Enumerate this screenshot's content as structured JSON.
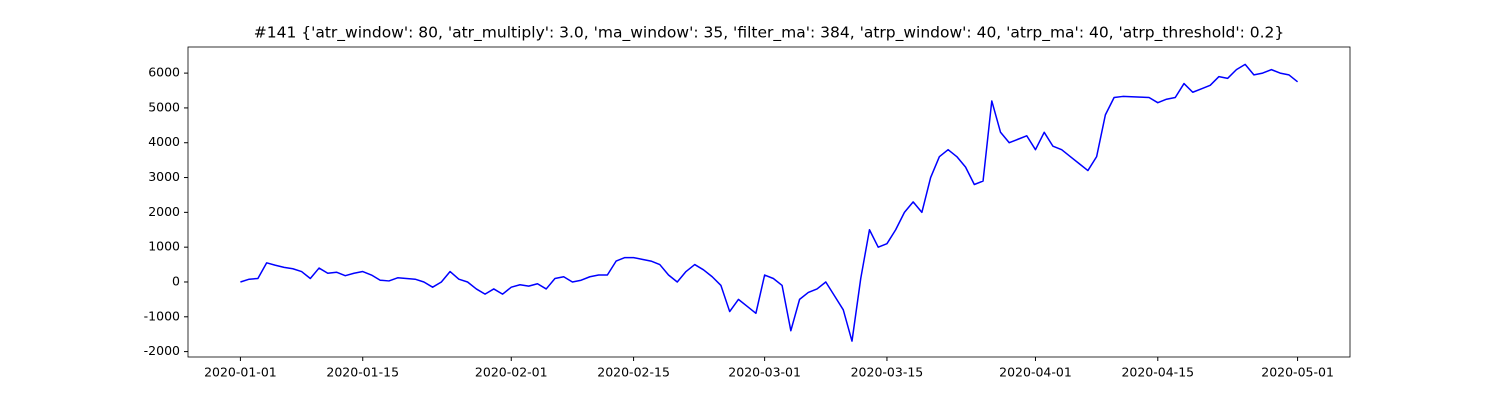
{
  "chart_data": {
    "type": "line",
    "title": "#141 {'atr_window': 80, 'atr_multiply': 3.0, 'ma_window': 35, 'filter_ma': 384, 'atrp_window': 40, 'atrp_ma': 40, 'atrp_threshold': 0.2}",
    "x": [
      "2020-01-01",
      "2020-01-02",
      "2020-01-03",
      "2020-01-04",
      "2020-01-05",
      "2020-01-06",
      "2020-01-07",
      "2020-01-08",
      "2020-01-09",
      "2020-01-10",
      "2020-01-11",
      "2020-01-12",
      "2020-01-13",
      "2020-01-14",
      "2020-01-15",
      "2020-01-16",
      "2020-01-17",
      "2020-01-18",
      "2020-01-19",
      "2020-01-20",
      "2020-01-21",
      "2020-01-22",
      "2020-01-23",
      "2020-01-24",
      "2020-01-25",
      "2020-01-26",
      "2020-01-27",
      "2020-01-28",
      "2020-01-29",
      "2020-01-30",
      "2020-01-31",
      "2020-02-01",
      "2020-02-02",
      "2020-02-03",
      "2020-02-04",
      "2020-02-05",
      "2020-02-06",
      "2020-02-07",
      "2020-02-08",
      "2020-02-09",
      "2020-02-10",
      "2020-02-11",
      "2020-02-12",
      "2020-02-13",
      "2020-02-14",
      "2020-02-15",
      "2020-02-16",
      "2020-02-17",
      "2020-02-18",
      "2020-02-19",
      "2020-02-20",
      "2020-02-21",
      "2020-02-22",
      "2020-02-23",
      "2020-02-24",
      "2020-02-25",
      "2020-02-26",
      "2020-02-27",
      "2020-02-28",
      "2020-02-29",
      "2020-03-01",
      "2020-03-02",
      "2020-03-03",
      "2020-03-04",
      "2020-03-05",
      "2020-03-06",
      "2020-03-07",
      "2020-03-08",
      "2020-03-09",
      "2020-03-10",
      "2020-03-11",
      "2020-03-12",
      "2020-03-13",
      "2020-03-14",
      "2020-03-15",
      "2020-03-16",
      "2020-03-17",
      "2020-03-18",
      "2020-03-19",
      "2020-03-20",
      "2020-03-21",
      "2020-03-22",
      "2020-03-23",
      "2020-03-24",
      "2020-03-25",
      "2020-03-26",
      "2020-03-27",
      "2020-03-28",
      "2020-03-29",
      "2020-03-30",
      "2020-03-31",
      "2020-04-01",
      "2020-04-02",
      "2020-04-03",
      "2020-04-04",
      "2020-04-05",
      "2020-04-06",
      "2020-04-07",
      "2020-04-08",
      "2020-04-09",
      "2020-04-10",
      "2020-04-11",
      "2020-04-12",
      "2020-04-13",
      "2020-04-14",
      "2020-04-15",
      "2020-04-16",
      "2020-04-17",
      "2020-04-18",
      "2020-04-19",
      "2020-04-20",
      "2020-04-21",
      "2020-04-22",
      "2020-04-23",
      "2020-04-24",
      "2020-04-25",
      "2020-04-26",
      "2020-04-27",
      "2020-04-28",
      "2020-04-29",
      "2020-04-30",
      "2020-05-01"
    ],
    "series": [
      {
        "color": "#0000ff",
        "values": [
          0,
          80,
          100,
          550,
          480,
          420,
          380,
          300,
          100,
          400,
          250,
          280,
          180,
          250,
          300,
          200,
          50,
          30,
          120,
          100,
          80,
          0,
          -150,
          0,
          300,
          80,
          0,
          -200,
          -350,
          -200,
          -350,
          -150,
          -80,
          -120,
          -50,
          -200,
          100,
          150,
          0,
          50,
          150,
          200,
          200,
          600,
          700,
          700,
          650,
          600,
          500,
          200,
          0,
          300,
          500,
          350,
          150,
          -100,
          -850,
          -500,
          -700,
          -900,
          200,
          100,
          -100,
          -1400,
          -500,
          -300,
          -200,
          0,
          -400,
          -800,
          -1700,
          100,
          1500,
          1000,
          1100,
          1500,
          2000,
          2300,
          2000,
          3000,
          3600,
          3800,
          3600,
          3300,
          2800,
          2900,
          5200,
          4300,
          4000,
          4100,
          4200,
          3800,
          4300,
          3900,
          3800,
          3600,
          3400,
          3200,
          3600,
          4800,
          5300,
          5330,
          5320,
          5310,
          5300,
          5150,
          5250,
          5300,
          5700,
          5450,
          5550,
          5650,
          5900,
          5850,
          6100,
          6250,
          5950,
          6000,
          6100,
          6000,
          5950,
          5750
        ]
      }
    ],
    "xlim": [
      "2019-12-26",
      "2020-05-07"
    ],
    "xticks": [
      "2020-01-01",
      "2020-01-15",
      "2020-02-01",
      "2020-02-15",
      "2020-03-01",
      "2020-03-15",
      "2020-04-01",
      "2020-04-15",
      "2020-05-01"
    ],
    "ylim": [
      -2155,
      6750
    ],
    "yticks": [
      -2000,
      -1000,
      0,
      1000,
      2000,
      3000,
      4000,
      5000,
      6000
    ]
  }
}
